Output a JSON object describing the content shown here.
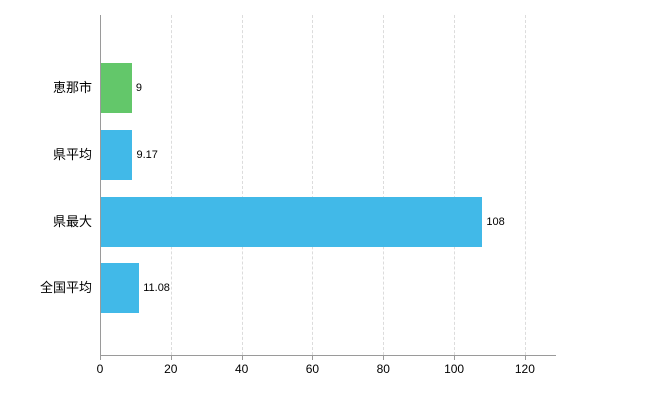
{
  "chart_data": {
    "type": "bar",
    "orientation": "horizontal",
    "title": "",
    "xlabel": "",
    "ylabel": "",
    "categories": [
      "恵那市",
      "県平均",
      "県最大",
      "全国平均"
    ],
    "values": [
      9,
      9.17,
      108,
      11.08
    ],
    "value_labels": [
      "9",
      "9.17",
      "108",
      "11.08"
    ],
    "bar_colors": [
      "#63c76a",
      "#41b9e8",
      "#41b9e8",
      "#41b9e8"
    ],
    "x_ticks": [
      0,
      20,
      40,
      60,
      80,
      100,
      120
    ],
    "xlim": [
      0,
      128.5
    ],
    "grid": true,
    "legend": false
  },
  "colors": {
    "axis": "#9a9a9a",
    "grid": "#dcdcdc",
    "background": "#ffffff"
  }
}
